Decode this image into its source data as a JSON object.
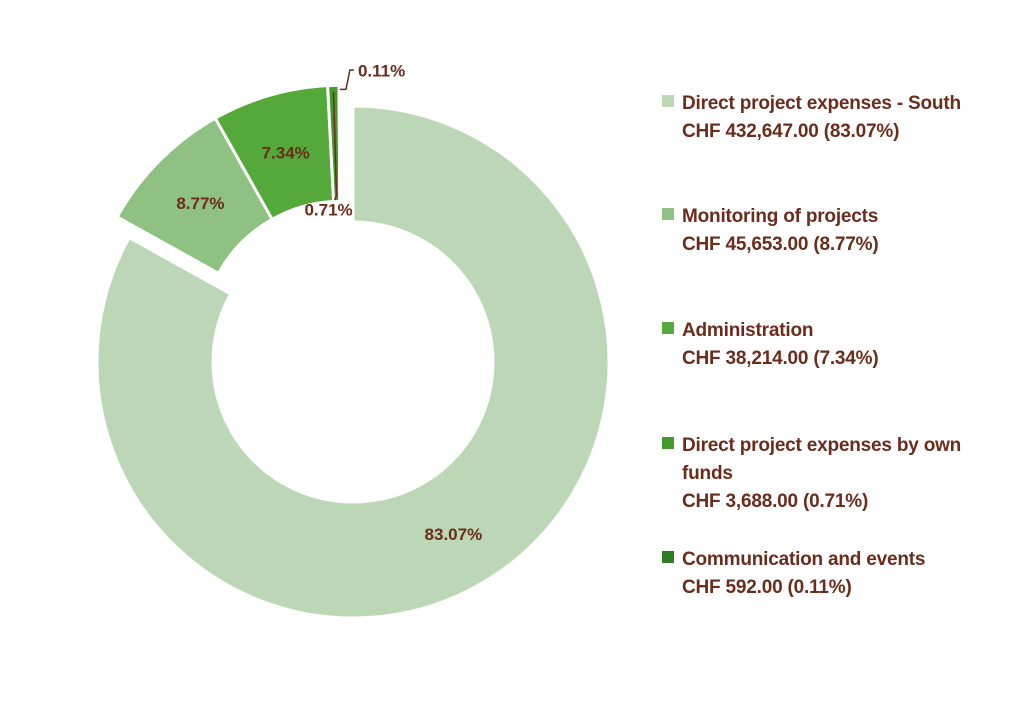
{
  "chart_data": {
    "type": "pie",
    "variant": "donut",
    "title": "",
    "legend_position": "right",
    "label_color": "#6b2c1c",
    "currency": "CHF",
    "slices": [
      {
        "name": "Direct project expenses - South",
        "value": 432647.0,
        "percent": 83.07,
        "color": "#bcd7b6",
        "percent_label": "83.07%",
        "legend_label": "Direct project expenses - South",
        "legend_amount": "CHF 432,647.00 (83.07%)",
        "exploded": false
      },
      {
        "name": "Monitoring of projects",
        "value": 45653.0,
        "percent": 8.77,
        "color": "#8fc183",
        "percent_label": "8.77%",
        "legend_label": "Monitoring of projects",
        "legend_amount": "CHF 45,653.00 (8.77%)",
        "exploded": true
      },
      {
        "name": "Administration",
        "value": 38214.0,
        "percent": 7.34,
        "color": "#55a83a",
        "percent_label": "7.34%",
        "legend_label": "Administration",
        "legend_amount": "CHF 38,214.00 (7.34%)",
        "exploded": true
      },
      {
        "name": "Direct project expenses by own funds",
        "value": 3688.0,
        "percent": 0.71,
        "color": "#43992d",
        "percent_label": "0.71%",
        "legend_label": "Direct project expenses by own funds",
        "legend_amount": "CHF 3,688.00 (0.71%)",
        "exploded": true
      },
      {
        "name": "Communication and events",
        "value": 592.0,
        "percent": 0.11,
        "color": "#2e7d22",
        "percent_label": "0.11%",
        "legend_label": "Communication and events",
        "legend_amount": "CHF 592.00 (0.11%)",
        "exploded": true
      }
    ]
  }
}
